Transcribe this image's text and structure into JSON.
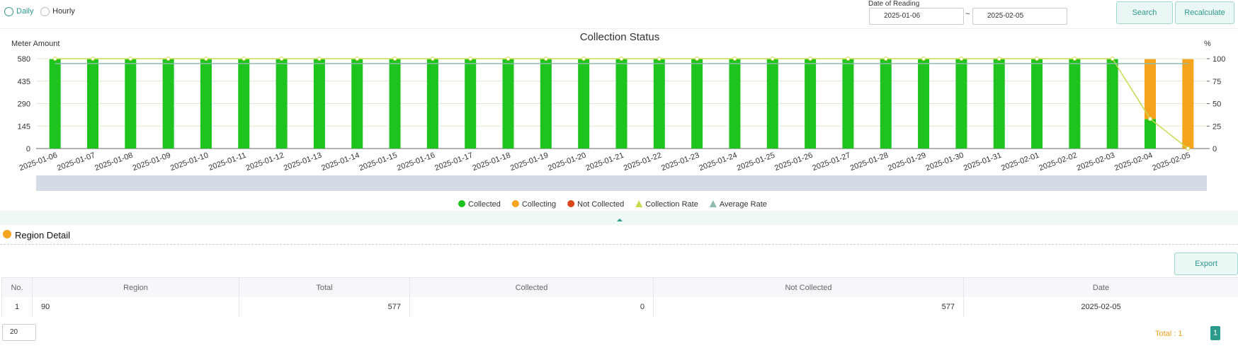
{
  "ui": {
    "mode_daily": "Daily",
    "mode_hourly": "Hourly",
    "date_label": "Date of Reading",
    "date_from": "2025-01-06",
    "date_sep": "~",
    "date_to": "2025-02-05",
    "search": "Search",
    "recalculate": "Recalculate",
    "section_title": "Region Detail",
    "export": "Export",
    "page_size": "20",
    "total": "Total : 1",
    "page": "1"
  },
  "chart_data": {
    "type": "bar",
    "title": "Collection Status",
    "y_label": "Meter Amount",
    "y2_label": "%",
    "categories": [
      "2025-01-06",
      "2025-01-07",
      "2025-01-08",
      "2025-01-09",
      "2025-01-10",
      "2025-01-11",
      "2025-01-12",
      "2025-01-13",
      "2025-01-14",
      "2025-01-15",
      "2025-01-16",
      "2025-01-17",
      "2025-01-18",
      "2025-01-19",
      "2025-01-20",
      "2025-01-21",
      "2025-01-22",
      "2025-01-23",
      "2025-01-24",
      "2025-01-25",
      "2025-01-26",
      "2025-01-27",
      "2025-01-28",
      "2025-01-29",
      "2025-01-30",
      "2025-01-31",
      "2025-02-01",
      "2025-02-02",
      "2025-02-03",
      "2025-02-04",
      "2025-02-05"
    ],
    "series": [
      {
        "name": "Collected",
        "type": "bar",
        "color": "#1ec31e",
        "values": [
          577,
          577,
          577,
          577,
          577,
          577,
          577,
          577,
          577,
          577,
          577,
          577,
          577,
          577,
          577,
          577,
          577,
          577,
          577,
          577,
          577,
          577,
          577,
          577,
          577,
          577,
          577,
          577,
          577,
          190,
          0
        ]
      },
      {
        "name": "Collecting",
        "type": "bar",
        "color": "#f5a21c",
        "values": [
          0,
          0,
          0,
          0,
          0,
          0,
          0,
          0,
          0,
          0,
          0,
          0,
          0,
          0,
          0,
          0,
          0,
          0,
          0,
          0,
          0,
          0,
          0,
          0,
          0,
          0,
          0,
          0,
          0,
          387,
          577
        ]
      },
      {
        "name": "Not Collected",
        "type": "bar",
        "color": "#d9441c",
        "values": [
          0,
          0,
          0,
          0,
          0,
          0,
          0,
          0,
          0,
          0,
          0,
          0,
          0,
          0,
          0,
          0,
          0,
          0,
          0,
          0,
          0,
          0,
          0,
          0,
          0,
          0,
          0,
          0,
          0,
          0,
          0
        ]
      },
      {
        "name": "Collection Rate",
        "type": "line",
        "axis": "y2",
        "color": "#cbd94e",
        "values": [
          100,
          100,
          100,
          100,
          100,
          100,
          100,
          100,
          100,
          100,
          100,
          100,
          100,
          100,
          100,
          100,
          100,
          100,
          100,
          100,
          100,
          100,
          100,
          100,
          100,
          100,
          100,
          100,
          100,
          33,
          0
        ]
      },
      {
        "name": "Average Rate",
        "type": "line",
        "axis": "y2",
        "color": "#8fbcaa",
        "values": [
          94.6,
          94.6,
          94.6,
          94.6,
          94.6,
          94.6,
          94.6,
          94.6,
          94.6,
          94.6,
          94.6,
          94.6,
          94.6,
          94.6,
          94.6,
          94.6,
          94.6,
          94.6,
          94.6,
          94.6,
          94.6,
          94.6,
          94.6,
          94.6,
          94.6,
          94.6,
          94.6,
          94.6,
          94.6,
          94.6,
          94.6
        ]
      }
    ],
    "ylim": [
      0,
      580
    ],
    "yticks": [
      0,
      145,
      290,
      435,
      580
    ],
    "y2lim": [
      0,
      100
    ],
    "y2ticks": [
      0,
      25,
      50,
      75,
      100
    ],
    "grid": true
  },
  "table": {
    "headers": [
      "No.",
      "Region",
      "Total",
      "Collected",
      "Not Collected",
      "Date"
    ],
    "rows": [
      [
        "1",
        "90",
        "577",
        "0",
        "577",
        "2025-02-05"
      ]
    ]
  }
}
